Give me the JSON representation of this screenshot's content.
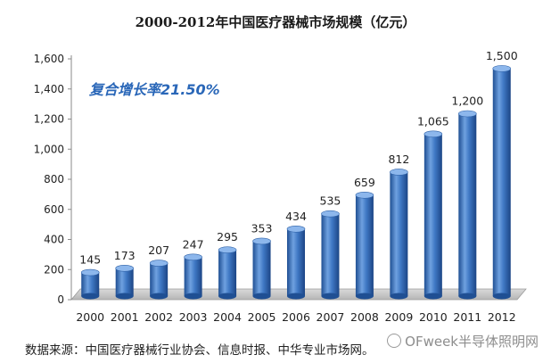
{
  "chart_data": {
    "type": "bar",
    "title": "2000-2012年中国医疗器械市场规模（亿元）",
    "annotation": "复合增长率21.50%",
    "categories": [
      "2000",
      "2001",
      "2002",
      "2003",
      "2004",
      "2005",
      "2006",
      "2007",
      "2008",
      "2009",
      "2010",
      "2011",
      "2012"
    ],
    "values": [
      145,
      173,
      207,
      247,
      295,
      353,
      434,
      535,
      659,
      812,
      1065,
      1200,
      1500
    ],
    "data_labels": [
      "145",
      "173",
      "207",
      "247",
      "295",
      "353",
      "434",
      "535",
      "659",
      "812",
      "1,065",
      "1,200",
      "1,500"
    ],
    "y_ticks": [
      "0",
      "200",
      "400",
      "600",
      "800",
      "1,000",
      "1,200",
      "1,400",
      "1,600"
    ],
    "ylim": [
      0,
      1600
    ],
    "grid": false,
    "legend": "none",
    "bar_color": "#3f78c4"
  },
  "footer": {
    "source": "数据来源：中国医疗器械行业协会、信息时报、中华专业市场网。",
    "watermark": "OFweek半导体照明网"
  }
}
